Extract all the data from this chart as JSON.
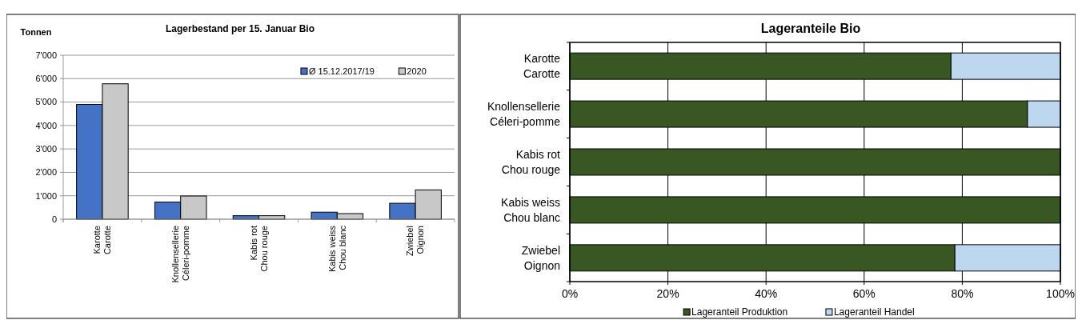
{
  "chart_data": [
    {
      "type": "bar",
      "title": "Lagerbestand per 15. Januar Bio",
      "ylabel": "Tonnen",
      "categories": [
        "Karotte\nCarotte",
        "Knollensellerie\nCéleri-pomme",
        "Kabis rot\nChou rouge",
        "Kabis weiss\nChou blanc",
        "Zwiebel\nOignon"
      ],
      "series": [
        {
          "name": "Ø 15.12.2017/19",
          "color": "#4472c4",
          "values": [
            4900,
            730,
            150,
            300,
            680
          ]
        },
        {
          "name": "2020",
          "color": "#c8c8c8",
          "values": [
            5780,
            990,
            150,
            240,
            1250
          ]
        }
      ],
      "ylim": [
        0,
        7000
      ],
      "yticks": [
        0,
        {
          "value": 1000,
          "label": "1'000"
        },
        {
          "value": 2000,
          "label": "2'000"
        },
        {
          "value": 3000,
          "label": "3'000"
        },
        {
          "value": 4000,
          "label": "4'000"
        },
        {
          "value": 5000,
          "label": "5'000"
        },
        {
          "value": 6000,
          "label": "6'000"
        },
        {
          "value": 7000,
          "label": "7'000"
        }
      ],
      "grid": "y",
      "legend": "top right"
    },
    {
      "type": "bar",
      "orientation": "horizontal",
      "stacked": true,
      "title": "Lageranteile Bio",
      "categories": [
        "Karotte\nCarotte",
        "Knollensellerie\nCéleri-pomme",
        "Kabis rot\nChou rouge",
        "Kabis weiss\nChou blanc",
        "Zwiebel\nOignon"
      ],
      "series": [
        {
          "name": "Lageranteil Produktion",
          "color": "#385723",
          "values": [
            77.7,
            93.3,
            100,
            100,
            78.5
          ]
        },
        {
          "name": "Lageranteil Handel",
          "color": "#bdd7ee",
          "values": [
            22.3,
            6.7,
            0,
            0,
            21.5
          ]
        }
      ],
      "xlim": [
        0,
        100
      ],
      "xticks": [
        {
          "value": 0,
          "label": "0%"
        },
        {
          "value": 20,
          "label": "20%"
        },
        {
          "value": 40,
          "label": "40%"
        },
        {
          "value": 60,
          "label": "60%"
        },
        {
          "value": 80,
          "label": "80%"
        },
        {
          "value": 100,
          "label": "100%"
        }
      ],
      "grid": "x",
      "legend": "bottom"
    }
  ]
}
